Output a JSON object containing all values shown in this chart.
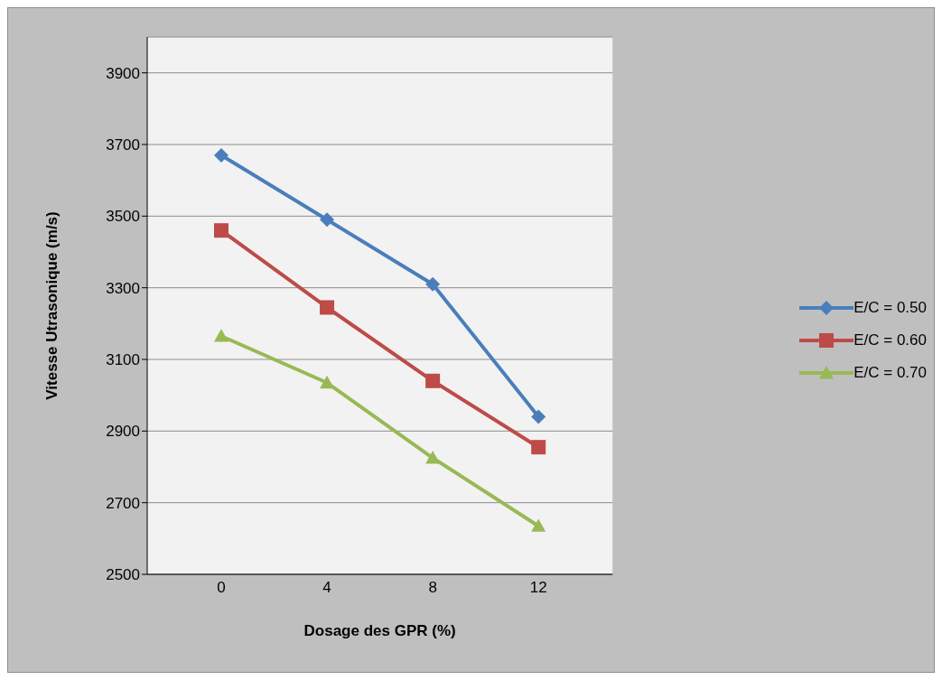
{
  "chart_data": {
    "type": "line",
    "xlabel": "Dosage des GPR (%)",
    "ylabel": "Vitesse Utrasonique (m/s)",
    "categories": [
      "0",
      "4",
      "8",
      "12"
    ],
    "series": [
      {
        "name": "E/C = 0.50",
        "color": "#4a7ebb",
        "marker": "diamond",
        "values": [
          3670,
          3490,
          3310,
          2940
        ]
      },
      {
        "name": "E/C = 0.60",
        "color": "#be4b48",
        "marker": "square",
        "values": [
          3460,
          3245,
          3040,
          2855
        ]
      },
      {
        "name": "E/C = 0.70",
        "color": "#98b954",
        "marker": "triangle",
        "values": [
          3165,
          3035,
          2825,
          2635
        ]
      }
    ],
    "ylim": [
      2500,
      4000
    ],
    "yticks": [
      2500,
      2700,
      2900,
      3100,
      3300,
      3500,
      3700,
      3900
    ],
    "grid": "y",
    "legend": "right",
    "line_style": "solid"
  }
}
